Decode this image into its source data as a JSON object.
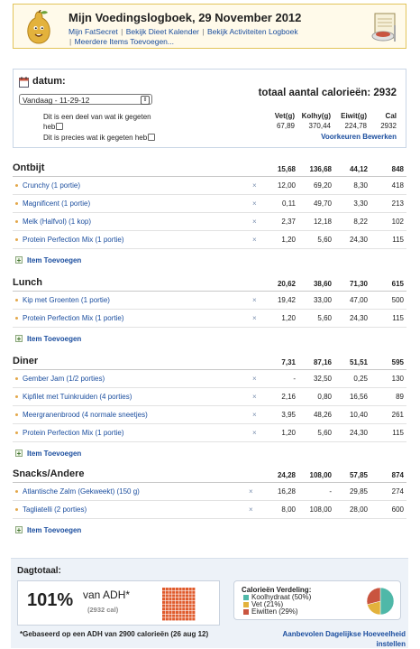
{
  "header": {
    "title": "Mijn Voedingslogboek, 29 November 2012",
    "links": [
      "Mijn FatSecret",
      "Bekijk Dieet Kalender",
      "Bekijk Activiteiten Logboek",
      "Meerdere Items Toevoegen..."
    ]
  },
  "summary": {
    "datum_label": "datum:",
    "date_value": "Vandaag - 11-29-12",
    "check1_line1": "Dit is een deel van wat ik gegeten",
    "check1_line2": "heb",
    "check2": "Dit is precies wat ik gegeten heb",
    "total_label": "totaal aantal calorieën: 2932",
    "columns": [
      "Vet(g)",
      "Kolhy(g)",
      "Eiwit(g)",
      "Cal"
    ],
    "totals": [
      "67,89",
      "370,44",
      "224,78",
      "2932"
    ],
    "preferences_link": "Voorkeuren Bewerken"
  },
  "meals": [
    {
      "name": "Ontbijt",
      "totals": [
        "15,68",
        "136,68",
        "44,12",
        "848"
      ],
      "items": [
        {
          "food": "Crunchy (1 portie)",
          "vet": "12,00",
          "kolhy": "69,20",
          "eiwit": "8,30",
          "cal": "418"
        },
        {
          "food": "Magnificent (1 portie)",
          "vet": "0,11",
          "kolhy": "49,70",
          "eiwit": "3,30",
          "cal": "213"
        },
        {
          "food": "Melk (Halfvol) (1 kop)",
          "vet": "2,37",
          "kolhy": "12,18",
          "eiwit": "8,22",
          "cal": "102"
        },
        {
          "food": "Protein Perfection Mix (1 portie)",
          "vet": "1,20",
          "kolhy": "5,60",
          "eiwit": "24,30",
          "cal": "115"
        }
      ],
      "add_label": "Item Toevoegen"
    },
    {
      "name": "Lunch",
      "totals": [
        "20,62",
        "38,60",
        "71,30",
        "615"
      ],
      "items": [
        {
          "food": "Kip met Groenten (1 portie)",
          "vet": "19,42",
          "kolhy": "33,00",
          "eiwit": "47,00",
          "cal": "500"
        },
        {
          "food": "Protein Perfection Mix (1 portie)",
          "vet": "1,20",
          "kolhy": "5,60",
          "eiwit": "24,30",
          "cal": "115"
        }
      ],
      "add_label": "Item Toevoegen"
    },
    {
      "name": "Diner",
      "totals": [
        "7,31",
        "87,16",
        "51,51",
        "595"
      ],
      "items": [
        {
          "food": "Gember Jam (1/2 porties)",
          "vet": "-",
          "kolhy": "32,50",
          "eiwit": "0,25",
          "cal": "130"
        },
        {
          "food": "Kipfilet met Tuinkruiden (4 porties)",
          "vet": "2,16",
          "kolhy": "0,80",
          "eiwit": "16,56",
          "cal": "89"
        },
        {
          "food": "Meergranenbrood (4 normale sneetjes)",
          "vet": "3,95",
          "kolhy": "48,26",
          "eiwit": "10,40",
          "cal": "261"
        },
        {
          "food": "Protein Perfection Mix (1 portie)",
          "vet": "1,20",
          "kolhy": "5,60",
          "eiwit": "24,30",
          "cal": "115"
        }
      ],
      "add_label": "Item Toevoegen"
    },
    {
      "name": "Snacks/Andere",
      "totals": [
        "24,28",
        "108,00",
        "57,85",
        "874"
      ],
      "items": [
        {
          "food": "Atlantische Zalm (Gekweekt) (150 g)",
          "vet": "16,28",
          "kolhy": "-",
          "eiwit": "29,85",
          "cal": "274"
        },
        {
          "food": "Tagliatelli (2 porties)",
          "vet": "8,00",
          "kolhy": "108,00",
          "eiwit": "28,00",
          "cal": "600"
        }
      ],
      "add_label": "Item Toevoegen"
    }
  ],
  "day_total": {
    "title": "Dagtotaal:",
    "percent": "101%",
    "van_adh": "van ADH*",
    "cal": "(2932 cal)",
    "percent_value": 101,
    "breakdown_title": "Calorieën Verdeling:",
    "breakdown": [
      {
        "label": "Koolhydraat (50%)",
        "value": 50,
        "color": "#4fb8a8"
      },
      {
        "label": "Vet (21%)",
        "value": 21,
        "color": "#e3b23c"
      },
      {
        "label": "Eiwitten (29%)",
        "value": 29,
        "color": "#c9543f"
      }
    ],
    "footnote": "*Gebaseerd op een ADH van 2900 calorieën (26 aug 12)",
    "rda_link": "Aanbevolen Dagelijkse Hoeveelheid instellen"
  },
  "icons": {
    "delete": "×",
    "add": "+",
    "dropdown": "⇕"
  },
  "colors": {
    "link": "#1a4d9e",
    "accent_orange": "#e3a84b",
    "grid_red": "#e05a2b"
  }
}
